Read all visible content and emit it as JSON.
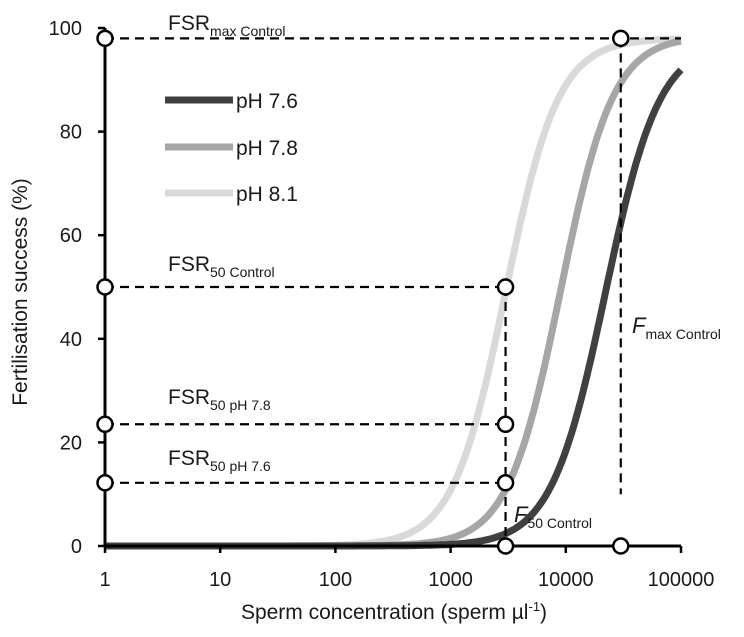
{
  "chart_data": {
    "type": "line",
    "xscale": "log",
    "xlim": [
      1,
      100000
    ],
    "ylim": [
      0,
      100
    ],
    "xlabel": "Sperm concentration (sperm µl",
    "xlabel_sup": "-1",
    "xlabel_end": ")",
    "ylabel": "Fertilisation success (%)",
    "x_ticks": [
      1,
      10,
      100,
      1000,
      10000,
      100000
    ],
    "x_tick_labels": [
      "1",
      "10",
      "100",
      "1000",
      "10000",
      "100000"
    ],
    "y_ticks": [
      0,
      20,
      40,
      60,
      80,
      100
    ],
    "y_tick_labels": [
      "0",
      "20",
      "40",
      "60",
      "80",
      "100"
    ],
    "legend_position": "top-left",
    "series": [
      {
        "name": "pH 7.6",
        "color": "#404040",
        "fsr_max": 97.5,
        "f50": 22000,
        "slope": 1.85
      },
      {
        "name": "pH 7.8",
        "color": "#a6a6a6",
        "fsr_max": 98.5,
        "f50": 9000,
        "slope": 1.9
      },
      {
        "name": "pH 8.1",
        "color": "#d9d9d9",
        "fsr_max": 98,
        "f50": 3000,
        "slope": 1.9
      }
    ],
    "reference_points": {
      "fsr_max_control": 98,
      "fsr50_control": 50,
      "fsr50_ph78": 23.5,
      "fsr50_ph76": 12.2,
      "f50_control": 3000,
      "fmax_control": 30000
    },
    "annotations": {
      "fsr_max": {
        "main": "FSR",
        "sub": "max Control"
      },
      "fsr50_control": {
        "main": "FSR",
        "sub": "50 Control"
      },
      "fsr50_ph78": {
        "main": "FSR",
        "sub": "50 pH 7.8"
      },
      "fsr50_ph76": {
        "main": "FSR",
        "sub": "50 pH 7.6"
      },
      "f50": {
        "main": "F",
        "sub": "50 Control"
      },
      "fmax": {
        "main": "F",
        "sub": "max Control"
      }
    }
  }
}
